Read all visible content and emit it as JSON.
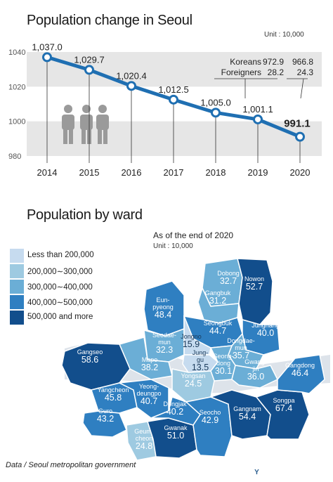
{
  "chart_data": [
    {
      "type": "line",
      "title": "Population change in Seoul",
      "unit": "Unit : 10,000",
      "x": [
        "2014",
        "2015",
        "2016",
        "2017",
        "2018",
        "2019",
        "2020"
      ],
      "values": [
        1037.0,
        1029.7,
        1020.4,
        1012.5,
        1005.0,
        1001.1,
        991.1
      ],
      "value_labels": [
        "1,037.0",
        "1,029.7",
        "1,020.4",
        "1,012.5",
        "1,005.0",
        "1,001.1",
        "991.1"
      ],
      "y_ticks": [
        "1040",
        "1020",
        "1000",
        "980"
      ],
      "ylim": [
        980,
        1040
      ],
      "grid": true,
      "colors": {
        "line": "#1f6fb2",
        "band": "#e6e6e6"
      },
      "breakdown": {
        "labels": [
          "Koreans",
          "Foreigners"
        ],
        "y2019": [
          "972.9",
          "28.2"
        ],
        "y2020": [
          "966.8",
          "24.3"
        ]
      }
    },
    {
      "type": "table",
      "title": "Population by ward",
      "subtitle": "As of the end of 2020",
      "unit": "Unit : 10,000",
      "legend": [
        {
          "label": "Less than 200,000",
          "color": "#c6dbef"
        },
        {
          "label": "200,000∼300,000",
          "color": "#9ecae1"
        },
        {
          "label": "300,000∼400,000",
          "color": "#6baed6"
        },
        {
          "label": "400,000∼500,000",
          "color": "#2f7fc1"
        },
        {
          "label": "500,000 and more",
          "color": "#124e8c"
        }
      ],
      "wards": [
        {
          "name": "Dobong",
          "value": "32.7"
        },
        {
          "name": "Nowon",
          "value": "52.7"
        },
        {
          "name": "Eun-\npyeong",
          "value": "48.4"
        },
        {
          "name": "Gangbuk",
          "value": "31.2"
        },
        {
          "name": "Seongbuk",
          "value": "44.7"
        },
        {
          "name": "Jungnang",
          "value": "40.0"
        },
        {
          "name": "Seodae-\nmun",
          "value": "32.3"
        },
        {
          "name": "Jongno",
          "value": "15.9"
        },
        {
          "name": "Dongdae-\nmun",
          "value": "35.7"
        },
        {
          "name": "Jung-\ngu",
          "value": "13.5"
        },
        {
          "name": "Seong-\ndong",
          "value": "30.1"
        },
        {
          "name": "Gwang-\njin",
          "value": "36.0"
        },
        {
          "name": "Mapo",
          "value": "38.2"
        },
        {
          "name": "Yongsan",
          "value": "24.5"
        },
        {
          "name": "Gangseo",
          "value": "58.6"
        },
        {
          "name": "Yangcheon",
          "value": "45.8"
        },
        {
          "name": "Yeong-\ndeungpo",
          "value": "40.7"
        },
        {
          "name": "Guro",
          "value": "43.2"
        },
        {
          "name": "Geum-\ncheon",
          "value": "24.8"
        },
        {
          "name": "Gwanak",
          "value": "51.0"
        },
        {
          "name": "Dongjak",
          "value": "40.2"
        },
        {
          "name": "Seocho",
          "value": "42.9"
        },
        {
          "name": "Gangnam",
          "value": "54.4"
        },
        {
          "name": "Songpa",
          "value": "67.4"
        },
        {
          "name": "Gangdong",
          "value": "46.4"
        }
      ]
    }
  ],
  "source": "Data / Seoul metropolitan government",
  "logo": "YONHAP NEWS"
}
